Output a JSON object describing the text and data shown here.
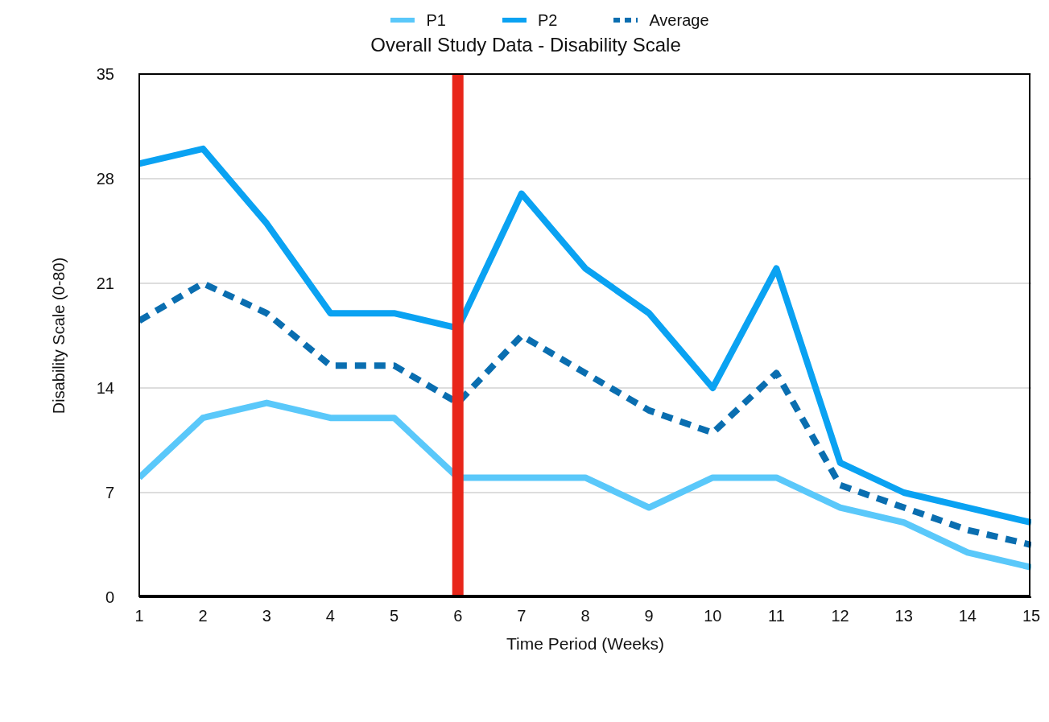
{
  "chart_data": {
    "type": "line",
    "title": "Overall Study Data - Disability Scale",
    "xlabel": "Time Period (Weeks)",
    "ylabel": "Disability Scale (0-80)",
    "x": [
      1,
      2,
      3,
      4,
      5,
      6,
      7,
      8,
      9,
      10,
      11,
      12,
      13,
      14,
      15
    ],
    "series": [
      {
        "name": "P1",
        "color": "#5ac8fa",
        "values": [
          8,
          12,
          13,
          12,
          12,
          8,
          8,
          8,
          6,
          8,
          8,
          6,
          5,
          3,
          2
        ]
      },
      {
        "name": "P2",
        "color": "#0aa2f2",
        "values": [
          29,
          30,
          25,
          19,
          19,
          18,
          27,
          22,
          19,
          14,
          22,
          9,
          7,
          6,
          5
        ]
      },
      {
        "name": "Average",
        "color": "#0a6eb0",
        "line_style": "dashed",
        "values": [
          18.5,
          21,
          19,
          15.5,
          15.5,
          13,
          17.5,
          15,
          12.5,
          11,
          15,
          7.5,
          6,
          4.5,
          3.5
        ]
      }
    ],
    "xlim": [
      1,
      15
    ],
    "xticks": [
      1,
      2,
      3,
      4,
      5,
      6,
      7,
      8,
      9,
      10,
      11,
      12,
      13,
      14,
      15
    ],
    "ylim": [
      0,
      35
    ],
    "yticks": [
      0,
      7,
      14,
      21,
      28,
      35
    ],
    "grid": "y",
    "legend": "top",
    "ref_lines": [
      {
        "axis": "x",
        "value": 6,
        "color": "#e8261a"
      }
    ]
  }
}
